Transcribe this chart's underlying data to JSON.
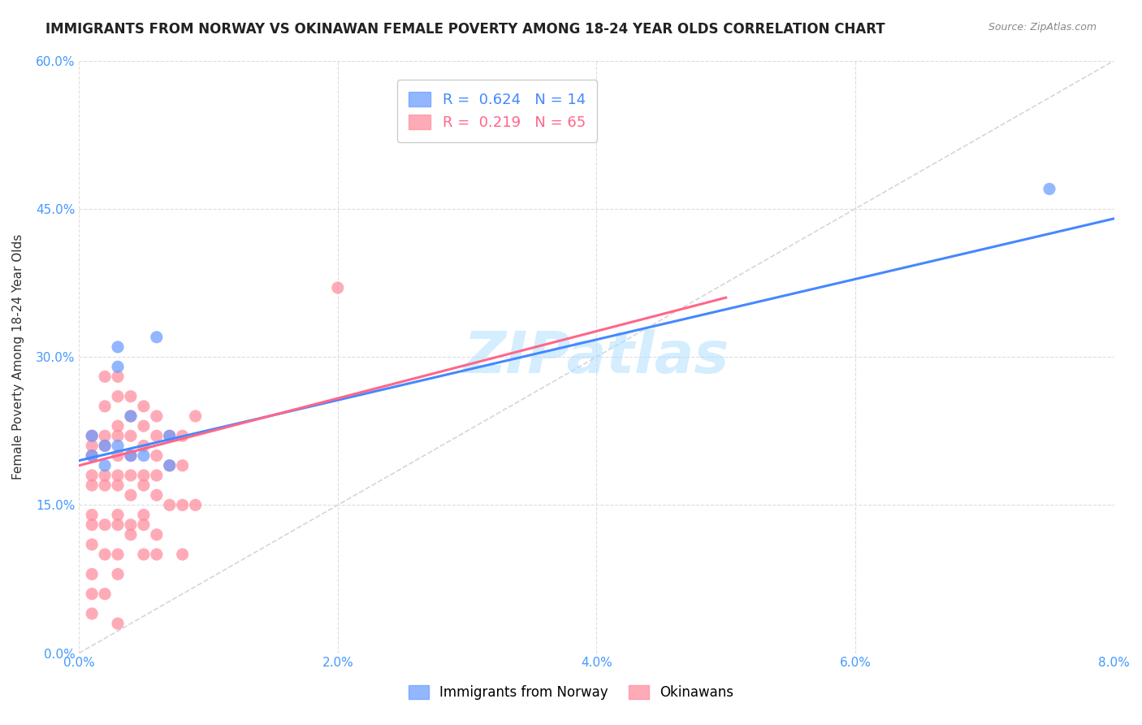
{
  "title": "IMMIGRANTS FROM NORWAY VS OKINAWAN FEMALE POVERTY AMONG 18-24 YEAR OLDS CORRELATION CHART",
  "source": "Source: ZipAtlas.com",
  "ylabel": "Female Poverty Among 18-24 Year Olds",
  "xlabel_ticks": [
    "0.0%",
    "2.0%",
    "4.0%",
    "6.0%",
    "8.0%"
  ],
  "ylabel_ticks": [
    "0.0%",
    "15.0%",
    "30.0%",
    "45.0%",
    "60.0%"
  ],
  "xlim": [
    0.0,
    0.08
  ],
  "ylim": [
    0.0,
    0.6
  ],
  "norway_R": 0.624,
  "norway_N": 14,
  "okinawa_R": 0.219,
  "okinawa_N": 65,
  "norway_color": "#6699ff",
  "okinawa_color": "#ff8899",
  "norway_line_color": "#4488ff",
  "okinawa_line_color": "#ff6688",
  "norway_x": [
    0.001,
    0.001,
    0.002,
    0.002,
    0.003,
    0.003,
    0.003,
    0.004,
    0.004,
    0.005,
    0.006,
    0.007,
    0.007,
    0.075
  ],
  "norway_y": [
    0.2,
    0.22,
    0.21,
    0.19,
    0.31,
    0.29,
    0.21,
    0.2,
    0.24,
    0.2,
    0.32,
    0.22,
    0.19,
    0.47
  ],
  "okinawa_x": [
    0.001,
    0.001,
    0.001,
    0.001,
    0.001,
    0.001,
    0.001,
    0.001,
    0.001,
    0.001,
    0.001,
    0.002,
    0.002,
    0.002,
    0.002,
    0.002,
    0.002,
    0.002,
    0.002,
    0.002,
    0.003,
    0.003,
    0.003,
    0.003,
    0.003,
    0.003,
    0.003,
    0.003,
    0.003,
    0.003,
    0.003,
    0.003,
    0.004,
    0.004,
    0.004,
    0.004,
    0.004,
    0.004,
    0.004,
    0.004,
    0.005,
    0.005,
    0.005,
    0.005,
    0.005,
    0.005,
    0.005,
    0.005,
    0.006,
    0.006,
    0.006,
    0.006,
    0.006,
    0.006,
    0.006,
    0.007,
    0.007,
    0.007,
    0.008,
    0.008,
    0.008,
    0.008,
    0.009,
    0.009,
    0.02
  ],
  "okinawa_y": [
    0.2,
    0.22,
    0.21,
    0.18,
    0.17,
    0.14,
    0.13,
    0.11,
    0.08,
    0.06,
    0.04,
    0.28,
    0.25,
    0.22,
    0.21,
    0.18,
    0.17,
    0.13,
    0.1,
    0.06,
    0.28,
    0.26,
    0.23,
    0.22,
    0.2,
    0.18,
    0.17,
    0.14,
    0.13,
    0.1,
    0.08,
    0.03,
    0.26,
    0.24,
    0.22,
    0.2,
    0.18,
    0.16,
    0.13,
    0.12,
    0.25,
    0.23,
    0.21,
    0.18,
    0.17,
    0.14,
    0.13,
    0.1,
    0.24,
    0.22,
    0.2,
    0.18,
    0.16,
    0.12,
    0.1,
    0.22,
    0.19,
    0.15,
    0.22,
    0.19,
    0.15,
    0.1,
    0.24,
    0.15,
    0.37
  ],
  "norway_regline": [
    0.0,
    0.08
  ],
  "norway_regline_y": [
    0.195,
    0.44
  ],
  "okinawa_regline": [
    0.0,
    0.05
  ],
  "okinawa_regline_y": [
    0.19,
    0.36
  ],
  "diag_line_x": [
    0.0,
    0.08
  ],
  "diag_line_y": [
    0.0,
    0.6
  ],
  "watermark": "ZIPatlas",
  "watermark_color": "#aaddff",
  "background_color": "#ffffff",
  "grid_color": "#dddddd"
}
